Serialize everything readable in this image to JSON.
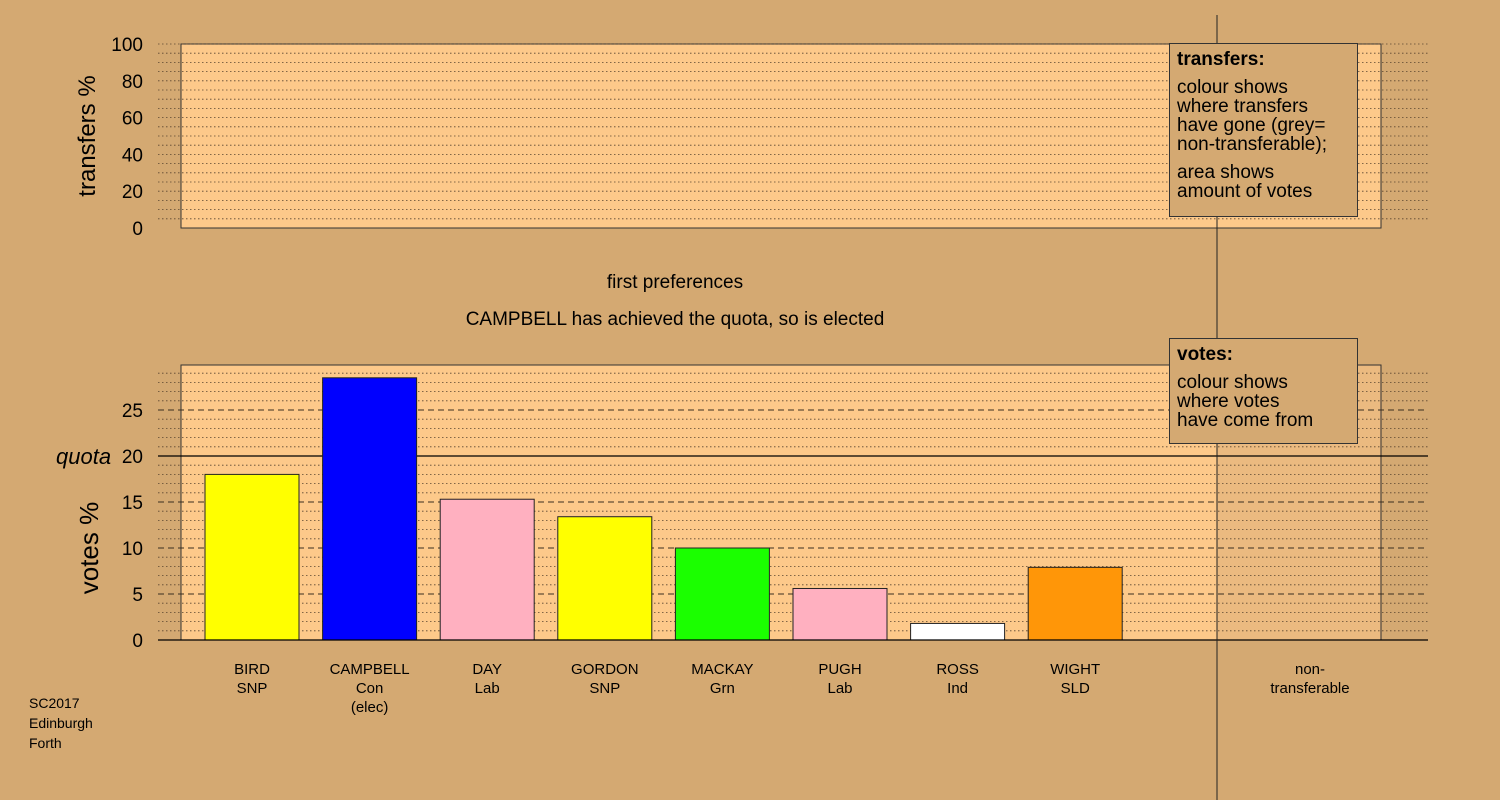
{
  "colors": {
    "background": "#d4a972",
    "plot_panel": "#fdc98a",
    "gridline": "#5a4630"
  },
  "header": {
    "stage_label": "first preferences",
    "status_line": "CAMPBELL has achieved the quota, so is elected"
  },
  "footnote": {
    "lines": [
      "SC2017",
      "Edinburgh",
      "Forth"
    ]
  },
  "legends": {
    "transfers": {
      "title": "transfers:",
      "lines1": [
        "colour shows",
        "where transfers",
        "have gone (grey=",
        "non-transferable);"
      ],
      "lines2": [
        "area shows",
        "amount of votes"
      ]
    },
    "votes": {
      "title": "votes:",
      "lines1": [
        "colour shows",
        "where votes",
        "have come from"
      ]
    }
  },
  "chart_data": [
    {
      "type": "bar",
      "panel": "transfers",
      "ylabel": "transfers %",
      "ylim": [
        0,
        100
      ],
      "yticks": [
        0,
        20,
        40,
        60,
        80,
        100
      ],
      "values": []
    },
    {
      "type": "bar",
      "panel": "votes",
      "ylabel": "votes %",
      "ylim": [
        0,
        29
      ],
      "yticks": [
        0,
        5,
        10,
        15,
        20,
        25
      ],
      "quota": {
        "value": 20,
        "label": "quota"
      },
      "categories": [
        {
          "name": "BIRD",
          "party": "SNP",
          "note": "",
          "value": 18.0,
          "color": "#ffff00"
        },
        {
          "name": "CAMPBELL",
          "party": "Con",
          "note": "(elec)",
          "value": 28.5,
          "color": "#0000ff"
        },
        {
          "name": "DAY",
          "party": "Lab",
          "note": "",
          "value": 15.3,
          "color": "#ffb0c0"
        },
        {
          "name": "GORDON",
          "party": "SNP",
          "note": "",
          "value": 13.4,
          "color": "#ffff00"
        },
        {
          "name": "MACKAY",
          "party": "Grn",
          "note": "",
          "value": 10.0,
          "color": "#1bff00"
        },
        {
          "name": "PUGH",
          "party": "Lab",
          "note": "",
          "value": 5.6,
          "color": "#ffb0c0"
        },
        {
          "name": "ROSS",
          "party": "Ind",
          "note": "",
          "value": 1.8,
          "color": "#ffffff"
        },
        {
          "name": "WIGHT",
          "party": "SLD",
          "note": "",
          "value": 7.9,
          "color": "#ff9608"
        }
      ],
      "nontransferable": {
        "label_lines": [
          "non-",
          "transferable"
        ],
        "value": 0
      }
    }
  ]
}
